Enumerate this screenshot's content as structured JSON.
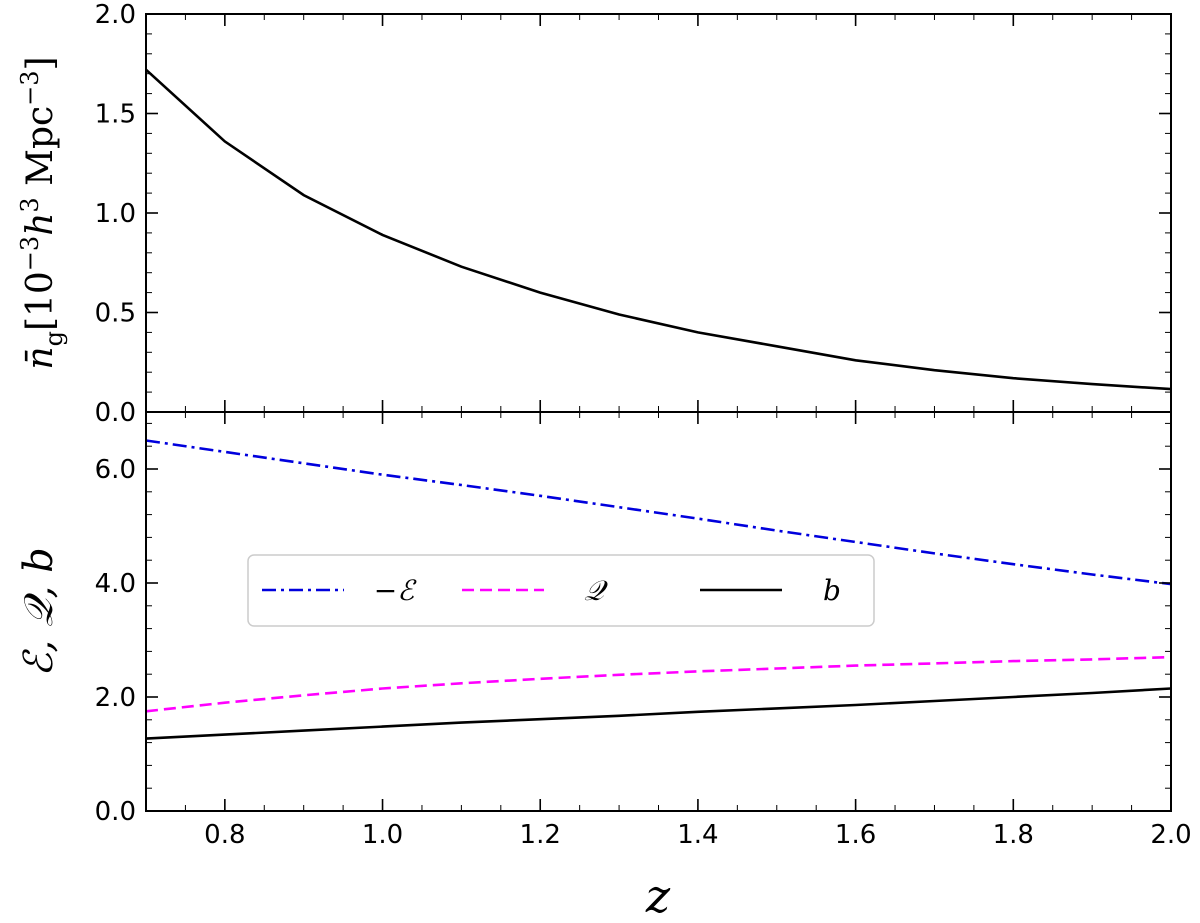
{
  "chart_data": [
    {
      "type": "line",
      "panel": "top",
      "x": [
        0.7,
        0.8,
        0.9,
        1.0,
        1.1,
        1.2,
        1.3,
        1.4,
        1.5,
        1.6,
        1.7,
        1.8,
        1.9,
        2.0
      ],
      "series": [
        {
          "name": "",
          "color": "#000000",
          "dash": "solid",
          "values": [
            1.72,
            1.36,
            1.09,
            0.89,
            0.73,
            0.6,
            0.49,
            0.4,
            0.33,
            0.26,
            0.21,
            0.17,
            0.14,
            0.115
          ]
        }
      ],
      "xlim": [
        0.7,
        2.0
      ],
      "ylim": [
        0.0,
        2.0
      ],
      "yticks": [
        0.0,
        0.5,
        1.0,
        1.5,
        2.0
      ],
      "ytick_labels": [
        "0.0",
        "0.5",
        "1.0",
        "1.5",
        "2.0"
      ],
      "ylabel_main": "n̄",
      "ylabel_sub": "g",
      "ylabel_rest": "[10",
      "ylabel_exp1": "−3",
      "ylabel_h": "h",
      "ylabel_exp2": "3",
      "ylabel_unit": " Mpc",
      "ylabel_exp3": "−3",
      "ylabel_close": "]"
    },
    {
      "type": "line",
      "panel": "bottom",
      "x": [
        0.7,
        0.8,
        0.9,
        1.0,
        1.1,
        1.2,
        1.3,
        1.4,
        1.5,
        1.6,
        1.7,
        1.8,
        1.9,
        2.0
      ],
      "series": [
        {
          "name": "−ℰ",
          "color": "#0000dd",
          "dash": "dashdot",
          "values": [
            6.5,
            6.3,
            6.1,
            5.9,
            5.72,
            5.53,
            5.33,
            5.13,
            4.92,
            4.72,
            4.52,
            4.33,
            4.15,
            3.98
          ]
        },
        {
          "name": "𝒬",
          "color": "#ff00ff",
          "dash": "dashed",
          "values": [
            1.75,
            1.9,
            2.03,
            2.15,
            2.24,
            2.32,
            2.39,
            2.45,
            2.5,
            2.55,
            2.59,
            2.63,
            2.66,
            2.7
          ]
        },
        {
          "name": "b",
          "color": "#000000",
          "dash": "solid",
          "values": [
            1.27,
            1.34,
            1.41,
            1.48,
            1.55,
            1.61,
            1.67,
            1.74,
            1.8,
            1.86,
            1.93,
            2.0,
            2.07,
            2.15
          ]
        }
      ],
      "xlim": [
        0.7,
        2.0
      ],
      "ylim": [
        0.0,
        7.0
      ],
      "yticks": [
        0.0,
        2.0,
        4.0,
        6.0
      ],
      "ytick_labels": [
        "0.0",
        "2.0",
        "4.0",
        "6.0"
      ],
      "xticks": [
        0.8,
        1.0,
        1.2,
        1.4,
        1.6,
        1.8,
        2.0
      ],
      "xtick_labels": [
        "0.8",
        "1.0",
        "1.2",
        "1.4",
        "1.6",
        "1.8",
        "2.0"
      ],
      "xlabel": "z",
      "ylabel": "ℰ, 𝒬, b",
      "legend": {
        "placement": "center-left",
        "ncol": 3
      }
    }
  ]
}
